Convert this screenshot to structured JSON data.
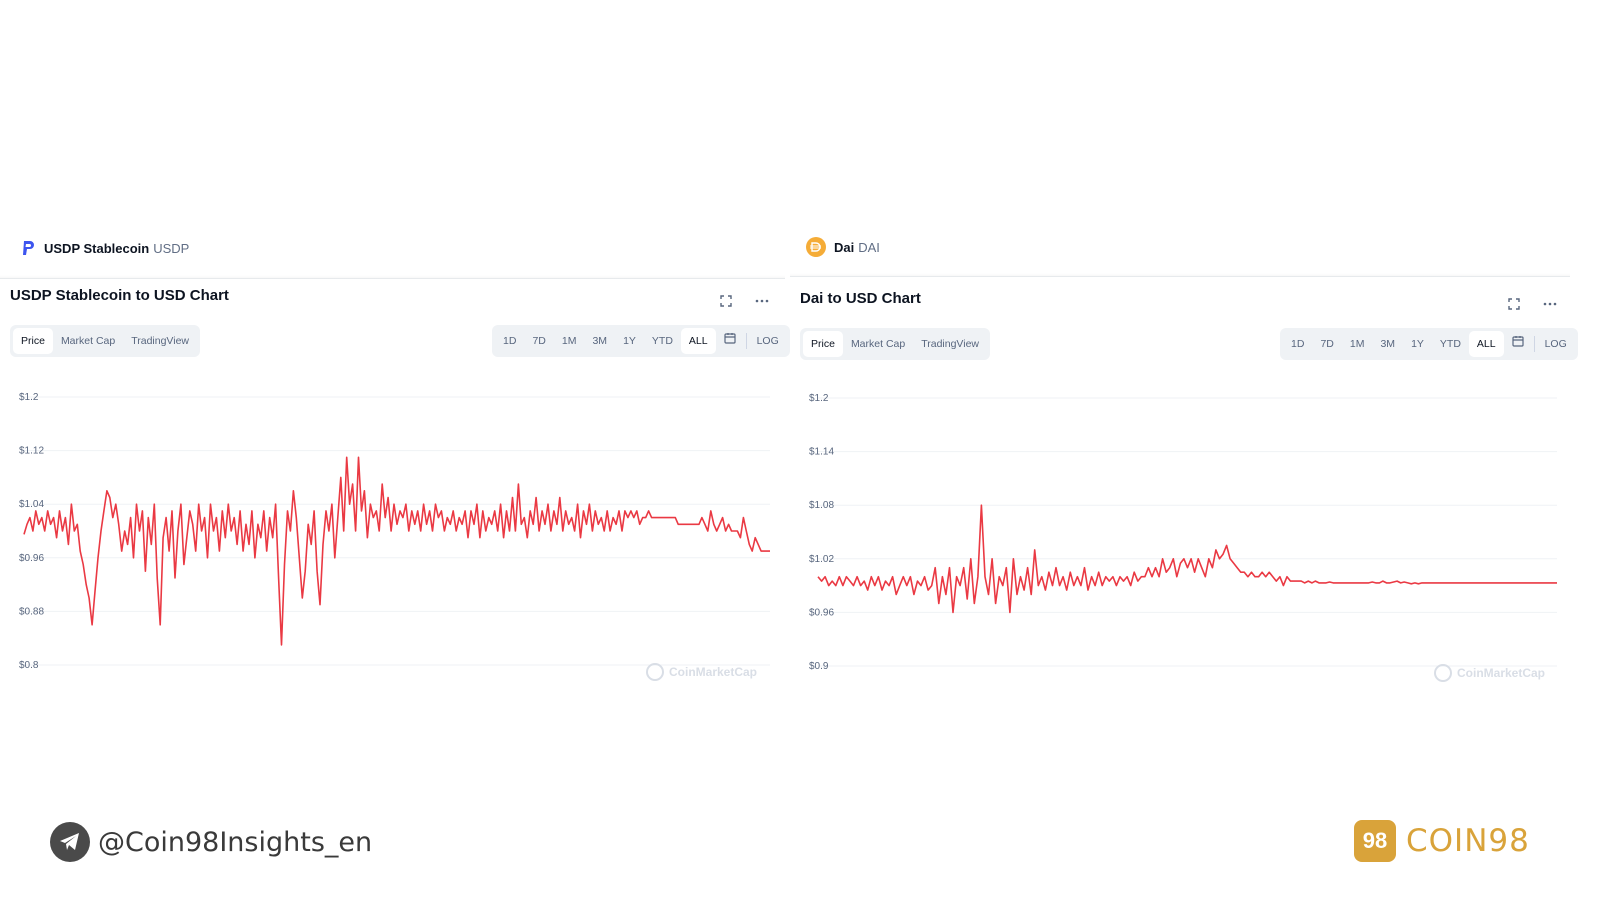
{
  "left": {
    "coin_name": "USDP Stablecoin",
    "coin_symbol": "USDP",
    "chart_title": "USDP Stablecoin to USD Chart",
    "tabs": [
      "Price",
      "Market Cap",
      "TradingView"
    ],
    "ranges": [
      "1D",
      "7D",
      "1M",
      "3M",
      "1Y",
      "YTD",
      "ALL"
    ],
    "log_label": "LOG",
    "watermark": "CoinMarketCap"
  },
  "right": {
    "coin_name": "Dai",
    "coin_symbol": "DAI",
    "chart_title": "Dai to USD Chart",
    "tabs": [
      "Price",
      "Market Cap",
      "TradingView"
    ],
    "ranges": [
      "1D",
      "7D",
      "1M",
      "3M",
      "1Y",
      "YTD",
      "ALL"
    ],
    "log_label": "LOG",
    "watermark": "CoinMarketCap"
  },
  "footer": {
    "telegram_handle": "@Coin98Insights_en",
    "brand_mark": "98",
    "brand_name": "COIN98"
  },
  "colors": {
    "line": "#ea3943",
    "brand": "#d9a33a"
  },
  "icons": [
    "usdp-logo-icon",
    "dai-logo-icon",
    "fullscreen-icon",
    "more-icon",
    "calendar-icon",
    "telegram-icon",
    "coinmarketcap-icon"
  ],
  "chart_data": [
    {
      "type": "line",
      "title": "USDP Stablecoin to USD Chart",
      "ylim": [
        0.8,
        1.2
      ],
      "y_ticks": [
        "$1.2",
        "$1.12",
        "$1.04",
        "$0.96",
        "$0.88",
        "$0.8"
      ],
      "y_tick_values": [
        1.2,
        1.12,
        1.04,
        0.96,
        0.88,
        0.8
      ],
      "series": [
        {
          "values": [
            0.995,
            1.01,
            1.02,
            1.0,
            1.03,
            1.01,
            1.02,
            1.0,
            1.03,
            1.01,
            1.02,
            0.99,
            1.03,
            1.0,
            1.02,
            0.98,
            1.04,
            1.0,
            1.01,
            0.97,
            0.95,
            0.92,
            0.9,
            0.86,
            0.91,
            0.96,
            1.0,
            1.03,
            1.06,
            1.05,
            1.02,
            1.04,
            1.01,
            0.97,
            1.0,
            0.98,
            1.02,
            0.96,
            1.04,
            1.0,
            1.03,
            0.94,
            1.02,
            0.98,
            1.04,
            0.93,
            0.86,
            0.99,
            1.02,
            0.97,
            1.03,
            0.93,
            1.0,
            1.04,
            0.95,
            0.99,
            1.03,
            1.01,
            0.97,
            1.04,
            1.0,
            1.02,
            0.96,
            1.04,
            1.0,
            1.02,
            0.97,
            1.03,
            0.99,
            1.04,
            1.0,
            1.02,
            0.98,
            1.03,
            0.97,
            1.01,
            0.98,
            1.03,
            0.96,
            1.01,
            0.99,
            1.03,
            0.97,
            1.02,
            0.99,
            1.04,
            0.93,
            0.83,
            0.95,
            1.03,
            1.0,
            1.06,
            1.02,
            0.96,
            0.9,
            0.94,
            1.01,
            0.98,
            1.03,
            0.94,
            0.89,
            0.98,
            1.03,
            1.0,
            1.04,
            0.96,
            1.02,
            1.08,
            1.0,
            1.11,
            1.04,
            1.07,
            1.0,
            1.11,
            1.03,
            1.06,
            0.99,
            1.04,
            1.02,
            1.03,
            1.0,
            1.07,
            1.02,
            1.05,
            1.0,
            1.04,
            1.01,
            1.03,
            1.02,
            1.04,
            1.0,
            1.03,
            1.01,
            1.03,
            1.0,
            1.04,
            1.01,
            1.03,
            1.0,
            1.04,
            1.02,
            1.03,
            1.0,
            1.02,
            1.01,
            1.03,
            1.0,
            1.02,
            1.01,
            1.03,
            0.99,
            1.03,
            1.01,
            1.04,
            0.99,
            1.03,
            1.0,
            1.02,
            1.01,
            1.03,
            1.0,
            1.04,
            0.99,
            1.03,
            1.0,
            1.05,
            1.0,
            1.07,
            1.01,
            1.02,
            0.99,
            1.03,
            1.01,
            1.05,
            1.0,
            1.03,
            1.01,
            1.04,
            1.0,
            1.03,
            1.01,
            1.05,
            1.0,
            1.03,
            1.01,
            1.02,
            1.0,
            1.04,
            0.99,
            1.03,
            1.01,
            1.04,
            1.0,
            1.03,
            1.01,
            1.02,
            1.0,
            1.03,
            1.0,
            1.02,
            1.01,
            1.03,
            1.0,
            1.03,
            1.02,
            1.03,
            1.02,
            1.03,
            1.01,
            1.02,
            1.02,
            1.03,
            1.02,
            1.02,
            1.02,
            1.02,
            1.02,
            1.02,
            1.02,
            1.02,
            1.02,
            1.01,
            1.01,
            1.01,
            1.01,
            1.01,
            1.01,
            1.01,
            1.01,
            1.02,
            1.01,
            1.0,
            1.03,
            1.01,
            1.0,
            1.01,
            1.02,
            1.0,
            1.01,
            1.0,
            1.0,
            1.0,
            0.99,
            1.02,
            1.0,
            0.98,
            0.97,
            0.99,
            0.98,
            0.97,
            0.97,
            0.97,
            0.97
          ]
        }
      ]
    },
    {
      "type": "line",
      "title": "Dai to USD Chart",
      "ylim": [
        0.9,
        1.2
      ],
      "y_ticks": [
        "$1.2",
        "$1.14",
        "$1.08",
        "$1.02",
        "$0.96",
        "$0.9"
      ],
      "y_tick_values": [
        1.2,
        1.14,
        1.08,
        1.02,
        0.96,
        0.9
      ],
      "series": [
        {
          "values": [
            1.0,
            0.995,
            1.0,
            0.99,
            0.995,
            0.99,
            1.0,
            0.99,
            1.0,
            0.995,
            0.99,
            1.0,
            0.99,
            0.995,
            0.985,
            1.0,
            0.99,
            1.0,
            0.985,
            0.995,
            0.99,
            1.0,
            0.98,
            0.99,
            1.0,
            0.99,
            1.0,
            0.98,
            0.995,
            0.99,
            1.0,
            0.985,
            0.99,
            1.01,
            0.97,
            1.0,
            0.98,
            1.01,
            0.96,
            1.0,
            0.99,
            1.01,
            0.975,
            1.02,
            0.97,
            1.0,
            1.08,
            1.0,
            0.98,
            1.02,
            0.97,
            1.0,
            0.99,
            1.01,
            0.96,
            1.02,
            0.98,
            1.0,
            0.985,
            1.01,
            0.98,
            1.03,
            0.99,
            1.0,
            0.985,
            1.005,
            0.99,
            1.01,
            0.99,
            1.0,
            0.985,
            1.005,
            0.99,
            1.0,
            0.99,
            1.01,
            0.985,
            1.0,
            0.99,
            1.005,
            0.99,
            1.0,
            0.995,
            1.0,
            0.99,
            1.0,
            0.995,
            1.0,
            0.99,
            1.005,
            0.995,
            1.0,
            1.0,
            1.01,
            1.0,
            1.01,
            1.0,
            1.02,
            1.005,
            1.01,
            1.02,
            1.0,
            1.015,
            1.02,
            1.01,
            1.02,
            1.005,
            1.02,
            1.01,
            1.0,
            1.02,
            1.01,
            1.03,
            1.02,
            1.025,
            1.035,
            1.02,
            1.015,
            1.01,
            1.005,
            1.005,
            1.0,
            1.005,
            1.0,
            1.0,
            1.005,
            1.0,
            1.005,
            1.0,
            0.995,
            1.0,
            0.99,
            1.0,
            0.995,
            0.995,
            0.995,
            0.995,
            0.993,
            0.995,
            0.993,
            0.995,
            0.993,
            0.993,
            0.993,
            0.994,
            0.993,
            0.993,
            0.993,
            0.993,
            0.993,
            0.993,
            0.993,
            0.993,
            0.993,
            0.993,
            0.993,
            0.994,
            0.993,
            0.993,
            0.995,
            0.993,
            0.993,
            0.994,
            0.995,
            0.993,
            0.994,
            0.993,
            0.992,
            0.993,
            0.992,
            0.993,
            0.993,
            0.993,
            0.993,
            0.993,
            0.993,
            0.993,
            0.993,
            0.993,
            0.993,
            0.993,
            0.993,
            0.993,
            0.993,
            0.993,
            0.993,
            0.993,
            0.993,
            0.993,
            0.993,
            0.993,
            0.993,
            0.993,
            0.993,
            0.993,
            0.993,
            0.993,
            0.993,
            0.993,
            0.993,
            0.993,
            0.993,
            0.993,
            0.993,
            0.993,
            0.993,
            0.993,
            0.993,
            0.993
          ]
        }
      ]
    }
  ]
}
